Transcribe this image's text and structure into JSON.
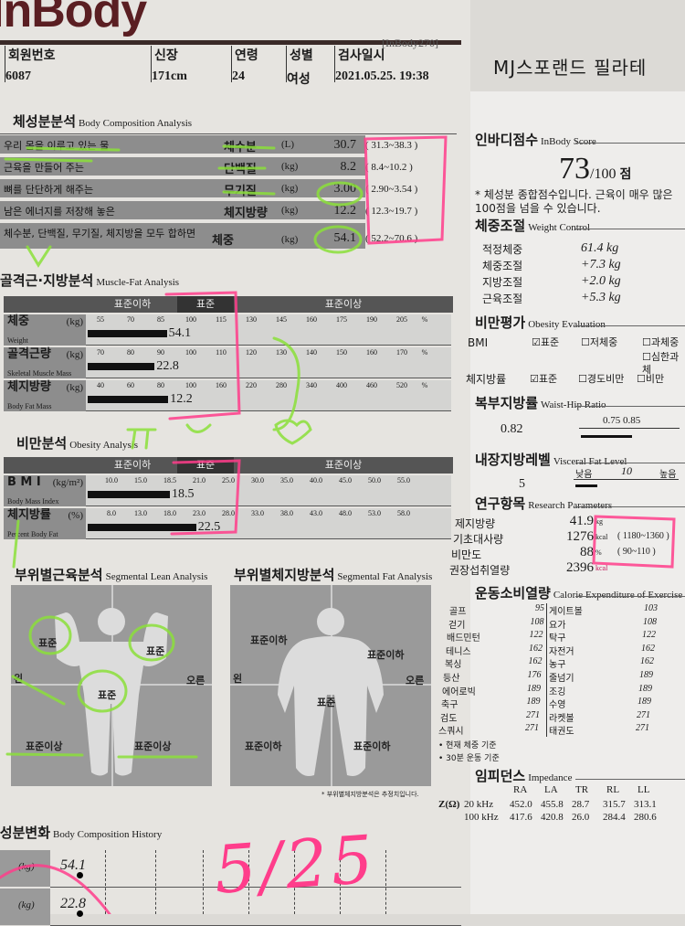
{
  "logo": "InBody",
  "model": "[InBody270]",
  "facility": "MJ스포랜드 필라테",
  "header": [
    {
      "label": "회원번호",
      "value": "6087"
    },
    {
      "label": "신장",
      "value": "171cm"
    },
    {
      "label": "연령",
      "value": "24"
    },
    {
      "label": "성별",
      "value": "여성"
    },
    {
      "label": "검사일시",
      "value": "2021.05.25. 19:38"
    }
  ],
  "body_composition": {
    "title": "체성분분석",
    "subtitle": "Body Composition Analysis",
    "rows": [
      {
        "desc": "우리 몸을 이루고 있는 물",
        "name": "체수분",
        "unit": "(L)",
        "value": "30.7",
        "range": "( 31.3~38.3 )"
      },
      {
        "desc": "근육을 만들어 주는",
        "name": "단백질",
        "unit": "(kg)",
        "value": "8.2",
        "range": "( 8.4~10.2 )"
      },
      {
        "desc": "뼈를 단단하게 해주는",
        "name": "무기질",
        "unit": "(kg)",
        "value": "3.00",
        "range": "( 2.90~3.54 )"
      },
      {
        "desc": "남은 에너지를 저장해 놓은",
        "name": "체지방량",
        "unit": "(kg)",
        "value": "12.2",
        "range": "( 12.3~19.7 )"
      },
      {
        "desc": "체수분, 단백질, 무기질, 체지방을 모두 합하면",
        "name": "체중",
        "unit": "(kg)",
        "value": "54.1",
        "range": "( 52.2~70.6 )"
      }
    ]
  },
  "muscle_fat": {
    "title": "골격근·지방분석",
    "subtitle": "Muscle-Fat Analysis",
    "bands": [
      "표준이하",
      "표준",
      "표준이상"
    ],
    "rows": [
      {
        "name": "체중",
        "en": "Weight",
        "unit": "(kg)",
        "ticks": [
          "55",
          "70",
          "85",
          "100",
          "115",
          "130",
          "145",
          "160",
          "175",
          "190",
          "205"
        ],
        "pct": "%",
        "value": "54.1",
        "level": 88
      },
      {
        "name": "골격근량",
        "en": "Skeletal Muscle Mass",
        "unit": "(kg)",
        "ticks": [
          "70",
          "80",
          "90",
          "100",
          "110",
          "120",
          "130",
          "140",
          "150",
          "160",
          "170"
        ],
        "pct": "%",
        "value": "22.8",
        "level": 88
      },
      {
        "name": "체지방량",
        "en": "Body Fat Mass",
        "unit": "(kg)",
        "ticks": [
          "40",
          "60",
          "80",
          "100",
          "160",
          "220",
          "280",
          "340",
          "400",
          "460",
          "520"
        ],
        "pct": "%",
        "value": "12.2",
        "level": 85
      }
    ]
  },
  "obesity": {
    "title": "비만분석",
    "subtitle": "Obesity Analysis",
    "bands": [
      "표준이하",
      "표준",
      "표준이상"
    ],
    "rows": [
      {
        "name": "B M I",
        "en": "Body Mass Index",
        "unit": "(kg/m²)",
        "ticks": [
          "10.0",
          "15.0",
          "18.5",
          "21.0",
          "25.0",
          "30.0",
          "35.0",
          "40.0",
          "45.0",
          "50.0",
          "55.0"
        ],
        "value": "18.5",
        "level": 18.5
      },
      {
        "name": "체지방률",
        "en": "Percent Body Fat",
        "unit": "(%)",
        "ticks": [
          "8.0",
          "13.0",
          "18.0",
          "23.0",
          "28.0",
          "33.0",
          "38.0",
          "43.0",
          "48.0",
          "53.0",
          "58.0"
        ],
        "value": "22.5",
        "level": 22.5
      }
    ]
  },
  "segmental_lean": {
    "title": "부위별근육분석",
    "subtitle": "Segmental Lean Analysis",
    "left_arm": "표준",
    "right_arm": "표준",
    "trunk": "표준",
    "left_leg": "표준이상",
    "right_leg": "표준이상",
    "left": "왼",
    "right": "오른"
  },
  "segmental_fat": {
    "title": "부위별체지방분석",
    "subtitle": "Segmental Fat Analysis",
    "left_arm": "표준이하",
    "right_arm": "표준이하",
    "trunk": "표준",
    "left_leg": "표준이하",
    "right_leg": "표준이하",
    "left": "왼",
    "right": "오른",
    "note": "* 부위별체지방분석은 추정치입니다."
  },
  "history": {
    "title": "체성분변화",
    "subtitle": "Body Composition History",
    "rows": [
      {
        "unit": "(kg)",
        "value": "54.1"
      },
      {
        "unit": "(kg)",
        "value": "22.8"
      }
    ]
  },
  "score": {
    "title": "인바디점수",
    "subtitle": "InBody Score",
    "value": "73",
    "max": "/100",
    "unit": "점",
    "note": "* 체성분 종합점수입니다. 근육이 매우 많은 100점을 넘을 수 있습니다."
  },
  "weight_control": {
    "title": "체중조절",
    "subtitle": "Weight Control",
    "rows": [
      {
        "label": "적정체중",
        "value": "61.4 kg"
      },
      {
        "label": "체중조절",
        "value": "+7.3 kg"
      },
      {
        "label": "지방조절",
        "value": "+2.0 kg"
      },
      {
        "label": "근육조절",
        "value": "+5.3 kg"
      }
    ]
  },
  "obesity_eval": {
    "title": "비만평가",
    "subtitle": "Obesity Evaluation",
    "bmi_label": "BMI",
    "bmi_options": [
      {
        "label": "표준",
        "checked": true
      },
      {
        "label": "저체중",
        "checked": false
      },
      {
        "label": "과체중",
        "checked": false
      },
      {
        "label": "심한과체",
        "checked": false
      }
    ],
    "pbf_label": "체지방률",
    "pbf_options": [
      {
        "label": "표준",
        "checked": true
      },
      {
        "label": "경도비만",
        "checked": false
      },
      {
        "label": "비만",
        "checked": false
      }
    ]
  },
  "whr": {
    "title": "복부지방률",
    "subtitle": "Waist-Hip Ratio",
    "value": "0.82",
    "scale": "0.75 0.85"
  },
  "visceral": {
    "title": "내장지방레벨",
    "subtitle": "Visceral Fat Level",
    "value": "5",
    "low": "낮음",
    "mid": "10",
    "high": "높음"
  },
  "research": {
    "title": "연구항목",
    "subtitle": "Research Parameters",
    "rows": [
      {
        "label": "제지방량",
        "value": "41.9",
        "unit": "kg",
        "range": ""
      },
      {
        "label": "기초대사량",
        "value": "1276",
        "unit": "kcal",
        "range": "( 1180~1360 )"
      },
      {
        "label": "비만도",
        "value": "88",
        "unit": "%",
        "range": "( 90~110 )"
      },
      {
        "label": "권장섭취열량",
        "value": "2396",
        "unit": "kcal",
        "range": ""
      }
    ]
  },
  "exercise": {
    "title": "운동소비열량",
    "subtitle": "Calorie Expenditure of Exercise",
    "rows": [
      [
        "골프",
        "95",
        "게이트볼",
        "103"
      ],
      [
        "걷기",
        "108",
        "요가",
        "108"
      ],
      [
        "배드민턴",
        "122",
        "탁구",
        "122"
      ],
      [
        "테니스",
        "162",
        "자전거",
        "162"
      ],
      [
        "복싱",
        "162",
        "농구",
        "162"
      ],
      [
        "등산",
        "176",
        "줄넘기",
        "189"
      ],
      [
        "에어로빅",
        "189",
        "조깅",
        "189"
      ],
      [
        "축구",
        "189",
        "수영",
        "189"
      ],
      [
        "검도",
        "271",
        "라켓볼",
        "271"
      ],
      [
        "스쿼시",
        "271",
        "태권도",
        "271"
      ]
    ],
    "notes": [
      "• 현재 체중 기준",
      "• 30분 운동 기준"
    ]
  },
  "impedance": {
    "title": "임피던스",
    "subtitle": "Impedance",
    "cols": [
      "RA",
      "LA",
      "TR",
      "RL",
      "LL"
    ],
    "z_label": "Z(Ω)",
    "rows": [
      {
        "freq": "20 kHz",
        "values": [
          "452.0",
          "455.8",
          "28.7",
          "315.7",
          "313.1"
        ]
      },
      {
        "freq": "100 kHz",
        "values": [
          "417.6",
          "420.8",
          "26.0",
          "284.4",
          "280.6"
        ]
      }
    ]
  },
  "handwriting": {
    "date": "5/25",
    "pink": "#ff3d8b",
    "green": "#8be03a"
  },
  "colors": {
    "logo": "#5a1e22",
    "band": "#555555",
    "row": "#8d8d8d"
  }
}
